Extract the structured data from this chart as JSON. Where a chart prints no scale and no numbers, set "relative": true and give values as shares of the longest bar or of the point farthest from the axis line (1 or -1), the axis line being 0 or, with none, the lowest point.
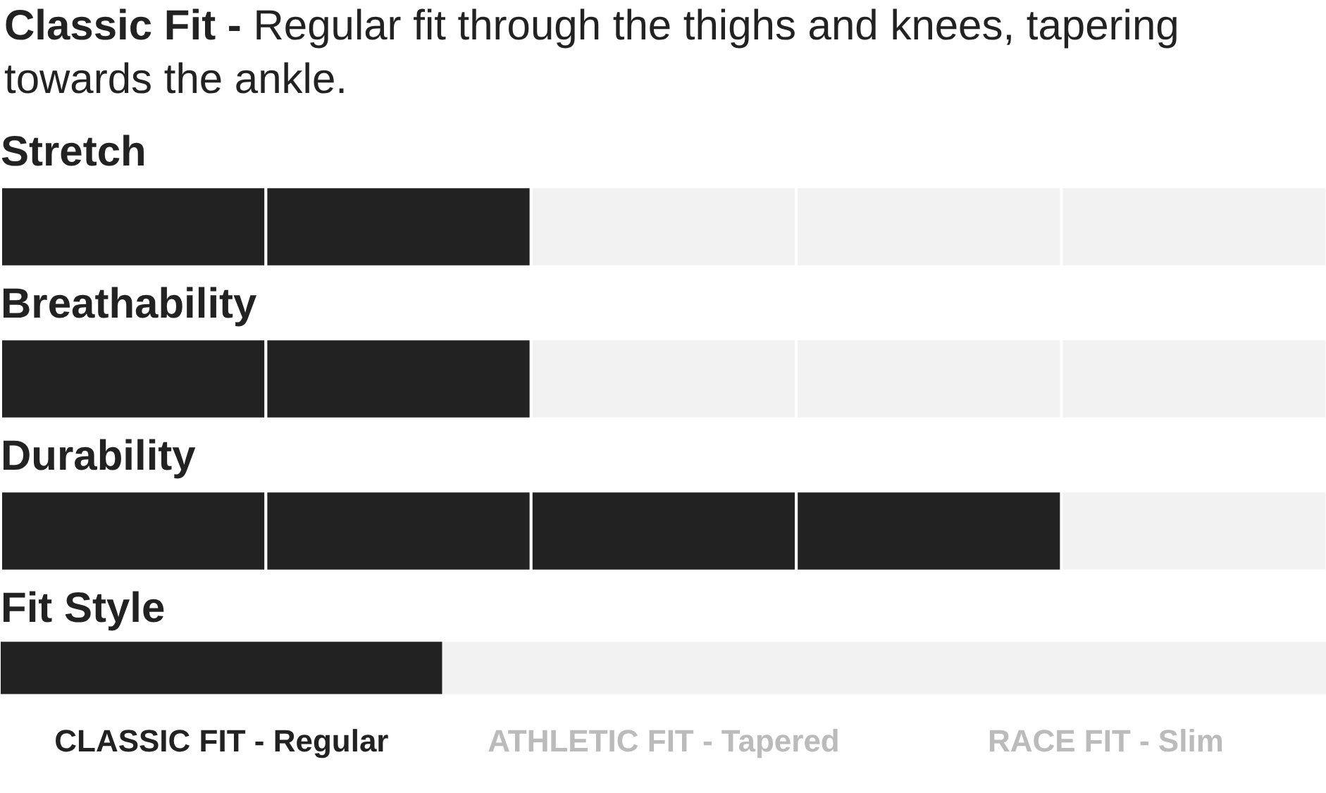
{
  "chart_data": [
    {
      "type": "other",
      "title": "Classic Fit -",
      "subtitle": "Regular fit through the thighs and knees, tapering towards the ankle."
    },
    {
      "type": "bar",
      "title": "Stretch",
      "orientation": "horizontal",
      "stacked": true,
      "relative": true,
      "categories": [
        null
      ],
      "series": [
        {
          "color": "#222222",
          "values": [
            0.2
          ]
        },
        {
          "color": "#222222",
          "values": [
            0.2
          ]
        },
        {
          "color": "#f2f2f2",
          "values": [
            0.2
          ]
        },
        {
          "color": "#f2f2f2",
          "values": [
            0.2
          ]
        },
        {
          "color": "#f2f2f2",
          "values": [
            0.2
          ]
        }
      ]
    },
    {
      "type": "bar",
      "title": "Breathability",
      "orientation": "horizontal",
      "stacked": true,
      "relative": true,
      "categories": [
        null
      ],
      "series": [
        {
          "color": "#222222",
          "values": [
            0.2
          ]
        },
        {
          "color": "#222222",
          "values": [
            0.2
          ]
        },
        {
          "color": "#f2f2f2",
          "values": [
            0.2
          ]
        },
        {
          "color": "#f2f2f2",
          "values": [
            0.2
          ]
        },
        {
          "color": "#f2f2f2",
          "values": [
            0.2
          ]
        }
      ]
    },
    {
      "type": "bar",
      "title": "Durability",
      "orientation": "horizontal",
      "stacked": true,
      "relative": true,
      "categories": [
        null
      ],
      "series": [
        {
          "color": "#222222",
          "values": [
            0.2
          ]
        },
        {
          "color": "#222222",
          "values": [
            0.2
          ]
        },
        {
          "color": "#222222",
          "values": [
            0.2
          ]
        },
        {
          "color": "#222222",
          "values": [
            0.2
          ]
        },
        {
          "color": "#f2f2f2",
          "values": [
            0.2
          ]
        }
      ]
    },
    {
      "type": "bar",
      "title": "Fit Style",
      "orientation": "horizontal",
      "stacked": true,
      "relative": true,
      "categories": [
        null
      ],
      "series": [
        {
          "color": "#222222",
          "values": [
            0.333
          ]
        },
        {
          "color": "#f2f2f2",
          "values": [
            0.667
          ]
        }
      ],
      "annotations": [
        "CLASSIC FIT - Regular",
        "ATHLETIC FIT - Tapered",
        "RACE FIT - Slim"
      ]
    }
  ]
}
